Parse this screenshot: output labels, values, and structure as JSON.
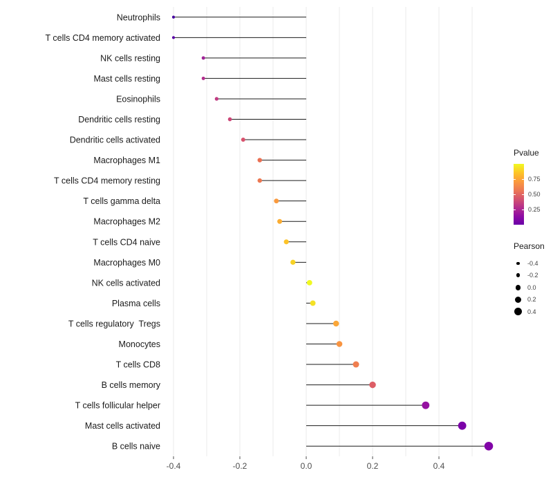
{
  "chart_data": {
    "type": "scatter",
    "subtype": "lollipop",
    "title": "",
    "xlabel": "",
    "ylabel": "",
    "x_ticks": [
      -0.4,
      -0.2,
      0.0,
      0.2,
      0.4
    ],
    "x_tick_labels": [
      "-0.4",
      "-0.2",
      "0.0",
      "0.2",
      "0.4"
    ],
    "xlim": [
      -0.42,
      0.6
    ],
    "grid": "vertical-light",
    "points": [
      {
        "label": "Neutrophils",
        "pearson": -0.4,
        "pvalue": 0.002,
        "color": "#46039f"
      },
      {
        "label": "T cells CD4 memory activated",
        "pearson": -0.4,
        "pvalue": 0.003,
        "color": "#5901a5"
      },
      {
        "label": "NK cells resting",
        "pearson": -0.31,
        "pvalue": 0.02,
        "color": "#a02497"
      },
      {
        "label": "Mast cells resting",
        "pearson": -0.31,
        "pvalue": 0.03,
        "color": "#b22d8d"
      },
      {
        "label": "Eosinophils",
        "pearson": -0.27,
        "pvalue": 0.05,
        "color": "#c13b82"
      },
      {
        "label": "Dendritic cells resting",
        "pearson": -0.23,
        "pvalue": 0.09,
        "color": "#cc4778"
      },
      {
        "label": "Dendritic cells activated",
        "pearson": -0.19,
        "pvalue": 0.16,
        "color": "#d8536e"
      },
      {
        "label": "Macrophages M1",
        "pearson": -0.14,
        "pvalue": 0.3,
        "color": "#ea7053"
      },
      {
        "label": "T cells CD4 memory resting",
        "pearson": -0.14,
        "pvalue": 0.31,
        "color": "#ec7852"
      },
      {
        "label": "T cells gamma delta",
        "pearson": -0.09,
        "pvalue": 0.46,
        "color": "#f99a3e"
      },
      {
        "label": "Macrophages M2",
        "pearson": -0.08,
        "pvalue": 0.55,
        "color": "#fbad32"
      },
      {
        "label": "T cells CD4 naive",
        "pearson": -0.06,
        "pvalue": 0.63,
        "color": "#fdc328"
      },
      {
        "label": "Macrophages M0",
        "pearson": -0.04,
        "pvalue": 0.74,
        "color": "#f7d225"
      },
      {
        "label": "NK cells activated",
        "pearson": 0.01,
        "pvalue": 0.93,
        "color": "#f0f921"
      },
      {
        "label": "Plasma cells",
        "pearson": 0.02,
        "pvalue": 0.86,
        "color": "#f4e125"
      },
      {
        "label": "T cells regulatory  Tregs",
        "pearson": 0.09,
        "pvalue": 0.5,
        "color": "#faa638"
      },
      {
        "label": "Monocytes",
        "pearson": 0.1,
        "pvalue": 0.46,
        "color": "#f89441"
      },
      {
        "label": "T cells CD8",
        "pearson": 0.15,
        "pvalue": 0.27,
        "color": "#ef7e4f"
      },
      {
        "label": "B cells memory",
        "pearson": 0.2,
        "pvalue": 0.17,
        "color": "#dd5e66"
      },
      {
        "label": "T cells follicular helper",
        "pearson": 0.36,
        "pvalue": 0.012,
        "color": "#9511a1"
      },
      {
        "label": "Mast cells activated",
        "pearson": 0.47,
        "pvalue": 0.001,
        "color": "#7b02a8"
      },
      {
        "label": "B cells naive",
        "pearson": 0.55,
        "pvalue": 0.0005,
        "color": "#8104a7"
      }
    ],
    "legend": {
      "pvalue": {
        "title": "Pvalue",
        "tick_labels": [
          "0.75",
          "0.50",
          "0.25"
        ],
        "tick_values": [
          0.75,
          0.5,
          0.25
        ],
        "gradient_stops": [
          "#f0f921",
          "#fdc527",
          "#fb9b3c",
          "#ed7953",
          "#d5546e",
          "#b52f8c",
          "#8f0da4",
          "#6a00a8"
        ]
      },
      "pearson": {
        "title": "Pearson",
        "dot_color": "#000000",
        "sizes": [
          {
            "label": "-0.4",
            "value": -0.4
          },
          {
            "label": "-0.2",
            "value": -0.2
          },
          {
            "label": "0.0",
            "value": 0.0
          },
          {
            "label": "0.2",
            "value": 0.2
          },
          {
            "label": "0.4",
            "value": 0.4
          }
        ]
      }
    },
    "colors": {
      "stem": "#1a1a1a",
      "grid": "#ebebeb",
      "axis_text": "#4d4d4d",
      "label_text": "#1a1a1a",
      "background": "#ffffff"
    }
  }
}
